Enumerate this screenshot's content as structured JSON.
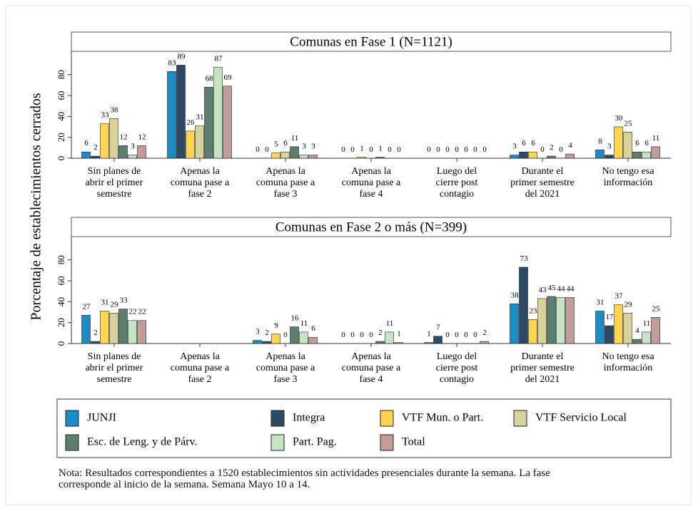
{
  "chart_data": {
    "type": "bar",
    "y_label": "Porcentaje de establecimientos cerrados",
    "categories": [
      "Sin planes de\nabrir el primer\nsemestre",
      "Apenas la\ncomuna pase a\nfase 2",
      "Apenas la\ncomuna pase a\nfase 3",
      "Apenas la\ncomuna pase a\nfase 4",
      "Luego del\ncierre post\ncontagio",
      "Durante el\nprimer semestre\ndel 2021",
      "No tengo esa\ninformación"
    ],
    "ylim": [
      0,
      90
    ],
    "yticks": [
      0,
      20,
      40,
      60,
      80
    ],
    "series": [
      {
        "name": "JUNJI",
        "color": "#1a8dc6"
      },
      {
        "name": "Integra",
        "color": "#2c4a64"
      },
      {
        "name": "VTF Mun. o Part.",
        "color": "#ffd54d"
      },
      {
        "name": "VTF Servicio Local",
        "color": "#d8d39c"
      },
      {
        "name": "Esc. de Leng. y de Párv.",
        "color": "#5e7e6e"
      },
      {
        "name": "Part. Pag.",
        "color": "#c5e4c3"
      },
      {
        "name": "Total",
        "color": "#c29c99"
      }
    ],
    "panels": [
      {
        "title": "Comunas en Fase 1 (N=1121)",
        "values": [
          [
            6,
            83,
            0,
            0,
            0,
            3,
            8
          ],
          [
            2,
            89,
            0,
            0,
            0,
            6,
            3
          ],
          [
            33,
            26,
            5,
            1,
            0,
            6,
            30
          ],
          [
            38,
            31,
            6,
            0,
            0,
            0,
            25
          ],
          [
            12,
            68,
            11,
            1,
            0,
            2,
            6
          ],
          [
            3,
            87,
            3,
            0,
            0,
            0,
            6
          ],
          [
            12,
            69,
            3,
            0,
            0,
            4,
            11
          ]
        ]
      },
      {
        "title": "Comunas en Fase 2 o más (N=399)",
        "values": [
          [
            27,
            null,
            3,
            0,
            1,
            38,
            31
          ],
          [
            2,
            null,
            2,
            0,
            7,
            73,
            17
          ],
          [
            31,
            null,
            9,
            0,
            0,
            23,
            37
          ],
          [
            29,
            null,
            0,
            0,
            0,
            43,
            29
          ],
          [
            33,
            null,
            16,
            2,
            0,
            45,
            4
          ],
          [
            22,
            null,
            11,
            11,
            0,
            44,
            11
          ],
          [
            22,
            null,
            6,
            1,
            2,
            44,
            25
          ]
        ]
      }
    ],
    "note": "Nota: Resultados correspondientes a 1520 establecimientos sin actividades presenciales durante la semana. La fase\ncorresponde al inicio de la semana. Semana Mayo 10 a 14."
  }
}
